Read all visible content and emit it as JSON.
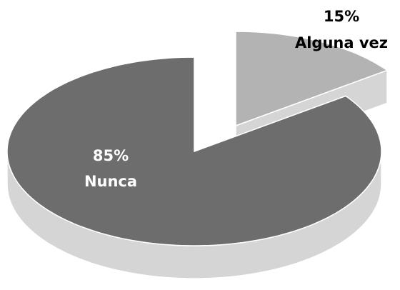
{
  "chart_data": {
    "type": "pie3d",
    "categories": [
      "Alguna vez",
      "Nunca"
    ],
    "values": [
      15,
      85
    ],
    "value_labels": [
      "15%",
      "85%"
    ],
    "colors": [
      "#b3b3b3",
      "#6d6d6d"
    ],
    "side_color": "#d5d5d5"
  }
}
